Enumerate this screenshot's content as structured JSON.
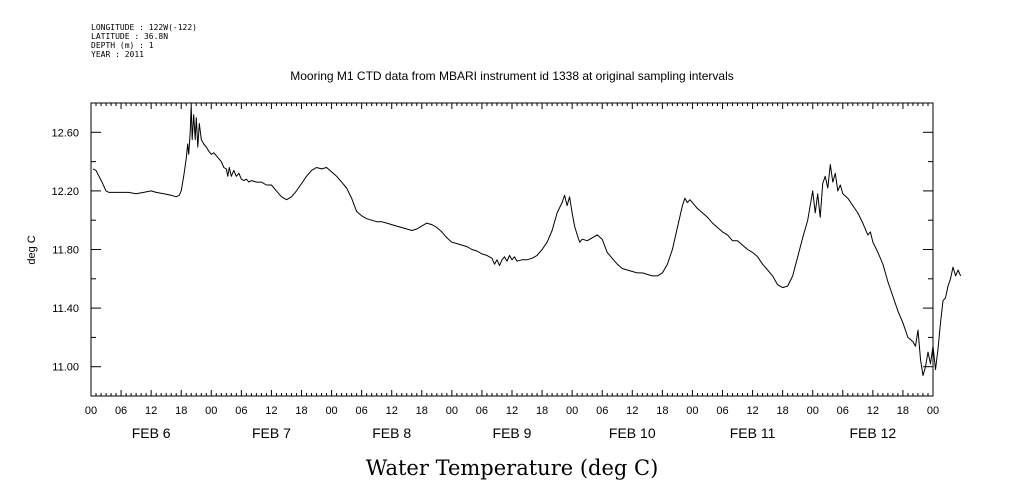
{
  "header": {
    "meta_lines": [
      "LONGITUDE : 122W(-122)",
      "LATITUDE : 36.8N",
      "DEPTH (m) : 1",
      "YEAR : 2011"
    ]
  },
  "chart_data": {
    "type": "line",
    "title": "Mooring M1 CTD data from MBARI instrument id 1338 at original sampling intervals",
    "xlabel": "Water Temperature (deg C)",
    "ylabel": "deg C",
    "x_units": "hours since FEB 6 00:00, 2011",
    "xlim": [
      0,
      168
    ],
    "ylim": [
      10.8,
      12.8
    ],
    "y_ticks": [
      11.0,
      11.4,
      11.8,
      12.2,
      12.6
    ],
    "y_tick_labels": [
      "11.00",
      "11.40",
      "11.80",
      "12.20",
      "12.60"
    ],
    "x_tick_hours": [
      0,
      6,
      12,
      18,
      24,
      30,
      36,
      42,
      48,
      54,
      60,
      66,
      72,
      78,
      84,
      90,
      96,
      102,
      108,
      114,
      120,
      126,
      132,
      138,
      144,
      150,
      156,
      162,
      168
    ],
    "x_tick_labels": [
      "00",
      "06",
      "12",
      "18",
      "00",
      "06",
      "12",
      "18",
      "00",
      "06",
      "12",
      "18",
      "00",
      "06",
      "12",
      "18",
      "00",
      "06",
      "12",
      "18",
      "00",
      "06",
      "12",
      "18",
      "00",
      "06",
      "12",
      "18",
      "00"
    ],
    "day_labels": [
      {
        "text": "FEB  6",
        "hour": 12
      },
      {
        "text": "FEB  7",
        "hour": 36
      },
      {
        "text": "FEB  8",
        "hour": 60
      },
      {
        "text": "FEB  9",
        "hour": 84
      },
      {
        "text": "FEB 10",
        "hour": 108
      },
      {
        "text": "FEB 11",
        "hour": 132
      },
      {
        "text": "FEB 12",
        "hour": 156
      }
    ],
    "grid": false,
    "series": [
      {
        "color": "#000000",
        "points": [
          [
            0.4,
            12.35
          ],
          [
            1.0,
            12.34
          ],
          [
            1.6,
            12.3
          ],
          [
            2.2,
            12.26
          ],
          [
            3.0,
            12.2
          ],
          [
            3.6,
            12.19
          ],
          [
            4.5,
            12.19
          ],
          [
            6,
            12.19
          ],
          [
            7.5,
            12.19
          ],
          [
            9,
            12.18
          ],
          [
            10.5,
            12.19
          ],
          [
            12,
            12.2
          ],
          [
            13,
            12.19
          ],
          [
            14.5,
            12.18
          ],
          [
            16,
            12.17
          ],
          [
            17,
            12.16
          ],
          [
            17.6,
            12.17
          ],
          [
            18.0,
            12.2
          ],
          [
            18.5,
            12.3
          ],
          [
            19.0,
            12.42
          ],
          [
            19.3,
            12.52
          ],
          [
            19.5,
            12.45
          ],
          [
            19.8,
            12.6
          ],
          [
            20.0,
            12.78
          ],
          [
            20.2,
            12.55
          ],
          [
            20.5,
            12.72
          ],
          [
            20.8,
            12.55
          ],
          [
            21.0,
            12.7
          ],
          [
            21.3,
            12.5
          ],
          [
            21.6,
            12.66
          ],
          [
            22.0,
            12.55
          ],
          [
            22.5,
            12.52
          ],
          [
            23.0,
            12.5
          ],
          [
            23.5,
            12.47
          ],
          [
            24.0,
            12.45
          ],
          [
            24.5,
            12.46
          ],
          [
            25,
            12.44
          ],
          [
            25.5,
            12.42
          ],
          [
            26,
            12.4
          ],
          [
            26.5,
            12.36
          ],
          [
            27,
            12.35
          ],
          [
            27.3,
            12.3
          ],
          [
            27.6,
            12.36
          ],
          [
            28,
            12.3
          ],
          [
            28.5,
            12.34
          ],
          [
            29,
            12.3
          ],
          [
            29.5,
            12.32
          ],
          [
            30,
            12.28
          ],
          [
            30.5,
            12.27
          ],
          [
            31,
            12.28
          ],
          [
            31.5,
            12.26
          ],
          [
            32,
            12.27
          ],
          [
            33,
            12.26
          ],
          [
            34,
            12.26
          ],
          [
            35,
            12.24
          ],
          [
            36,
            12.24
          ],
          [
            37,
            12.2
          ],
          [
            38,
            12.16
          ],
          [
            39,
            12.14
          ],
          [
            40,
            12.16
          ],
          [
            41,
            12.2
          ],
          [
            42,
            12.25
          ],
          [
            43,
            12.3
          ],
          [
            44,
            12.34
          ],
          [
            45,
            12.36
          ],
          [
            46,
            12.35
          ],
          [
            47,
            12.36
          ],
          [
            48,
            12.33
          ],
          [
            49,
            12.3
          ],
          [
            50,
            12.26
          ],
          [
            51,
            12.22
          ],
          [
            52,
            12.15
          ],
          [
            53,
            12.06
          ],
          [
            54,
            12.03
          ],
          [
            55,
            12.01
          ],
          [
            56,
            12.0
          ],
          [
            57,
            11.99
          ],
          [
            58,
            11.99
          ],
          [
            59,
            11.98
          ],
          [
            60,
            11.97
          ],
          [
            61,
            11.96
          ],
          [
            62,
            11.95
          ],
          [
            63,
            11.94
          ],
          [
            64,
            11.93
          ],
          [
            65,
            11.94
          ],
          [
            66,
            11.96
          ],
          [
            67,
            11.98
          ],
          [
            68,
            11.97
          ],
          [
            69,
            11.95
          ],
          [
            70,
            11.92
          ],
          [
            71,
            11.88
          ],
          [
            72,
            11.85
          ],
          [
            73,
            11.84
          ],
          [
            74,
            11.83
          ],
          [
            75,
            11.82
          ],
          [
            76,
            11.8
          ],
          [
            77,
            11.79
          ],
          [
            78,
            11.77
          ],
          [
            79,
            11.76
          ],
          [
            80,
            11.74
          ],
          [
            80.5,
            11.7
          ],
          [
            81,
            11.73
          ],
          [
            81.5,
            11.69
          ],
          [
            82,
            11.73
          ],
          [
            82.5,
            11.75
          ],
          [
            83,
            11.72
          ],
          [
            83.5,
            11.76
          ],
          [
            84,
            11.73
          ],
          [
            84.5,
            11.75
          ],
          [
            85,
            11.72
          ],
          [
            86,
            11.73
          ],
          [
            87,
            11.73
          ],
          [
            88,
            11.74
          ],
          [
            89,
            11.76
          ],
          [
            90,
            11.8
          ],
          [
            91,
            11.85
          ],
          [
            92,
            11.93
          ],
          [
            93,
            12.05
          ],
          [
            94,
            12.12
          ],
          [
            94.5,
            12.17
          ],
          [
            95,
            12.1
          ],
          [
            95.5,
            12.16
          ],
          [
            96,
            12.05
          ],
          [
            96.5,
            11.96
          ],
          [
            97,
            11.9
          ],
          [
            97.5,
            11.85
          ],
          [
            98,
            11.87
          ],
          [
            99,
            11.86
          ],
          [
            100,
            11.88
          ],
          [
            101,
            11.9
          ],
          [
            102,
            11.87
          ],
          [
            103,
            11.78
          ],
          [
            104,
            11.74
          ],
          [
            105,
            11.7
          ],
          [
            106,
            11.67
          ],
          [
            107,
            11.66
          ],
          [
            108,
            11.65
          ],
          [
            109,
            11.64
          ],
          [
            110,
            11.64
          ],
          [
            111,
            11.63
          ],
          [
            112,
            11.62
          ],
          [
            113,
            11.62
          ],
          [
            114,
            11.64
          ],
          [
            115,
            11.7
          ],
          [
            116,
            11.8
          ],
          [
            117,
            11.95
          ],
          [
            118,
            12.1
          ],
          [
            118.5,
            12.15
          ],
          [
            119,
            12.12
          ],
          [
            119.5,
            12.14
          ],
          [
            120,
            12.12
          ],
          [
            121,
            12.08
          ],
          [
            122,
            12.05
          ],
          [
            123,
            12.02
          ],
          [
            124,
            11.98
          ],
          [
            125,
            11.95
          ],
          [
            126,
            11.92
          ],
          [
            127,
            11.9
          ],
          [
            128,
            11.86
          ],
          [
            129,
            11.86
          ],
          [
            130,
            11.83
          ],
          [
            131,
            11.8
          ],
          [
            132,
            11.78
          ],
          [
            133,
            11.75
          ],
          [
            134,
            11.7
          ],
          [
            135,
            11.66
          ],
          [
            136,
            11.62
          ],
          [
            137,
            11.56
          ],
          [
            138,
            11.54
          ],
          [
            139,
            11.55
          ],
          [
            140,
            11.62
          ],
          [
            141,
            11.75
          ],
          [
            142,
            11.88
          ],
          [
            143,
            12.0
          ],
          [
            143.5,
            12.1
          ],
          [
            144,
            12.2
          ],
          [
            144.5,
            12.05
          ],
          [
            145,
            12.18
          ],
          [
            145.5,
            12.02
          ],
          [
            146,
            12.25
          ],
          [
            146.5,
            12.3
          ],
          [
            147,
            12.22
          ],
          [
            147.5,
            12.38
          ],
          [
            148,
            12.26
          ],
          [
            148.5,
            12.32
          ],
          [
            149,
            12.2
          ],
          [
            149.5,
            12.24
          ],
          [
            150,
            12.18
          ],
          [
            151,
            12.15
          ],
          [
            152,
            12.1
          ],
          [
            153,
            12.05
          ],
          [
            154,
            11.98
          ],
          [
            155,
            11.9
          ],
          [
            155.5,
            11.92
          ],
          [
            156,
            11.85
          ],
          [
            157,
            11.78
          ],
          [
            158,
            11.7
          ],
          [
            159,
            11.58
          ],
          [
            160,
            11.48
          ],
          [
            161,
            11.38
          ],
          [
            162,
            11.3
          ],
          [
            163,
            11.2
          ],
          [
            164,
            11.17
          ],
          [
            164.5,
            11.14
          ],
          [
            165,
            11.25
          ],
          [
            165.5,
            11.05
          ],
          [
            166,
            10.94
          ],
          [
            166.5,
            11.0
          ],
          [
            167,
            11.1
          ],
          [
            167.5,
            11.02
          ],
          [
            168,
            11.14
          ],
          [
            168.5,
            10.98
          ],
          [
            169,
            11.12
          ],
          [
            169.5,
            11.3
          ],
          [
            170,
            11.45
          ],
          [
            170.5,
            11.47
          ],
          [
            171,
            11.55
          ],
          [
            171.5,
            11.6
          ],
          [
            172,
            11.68
          ],
          [
            172.5,
            11.62
          ],
          [
            173,
            11.66
          ],
          [
            173.5,
            11.62
          ]
        ]
      }
    ]
  }
}
